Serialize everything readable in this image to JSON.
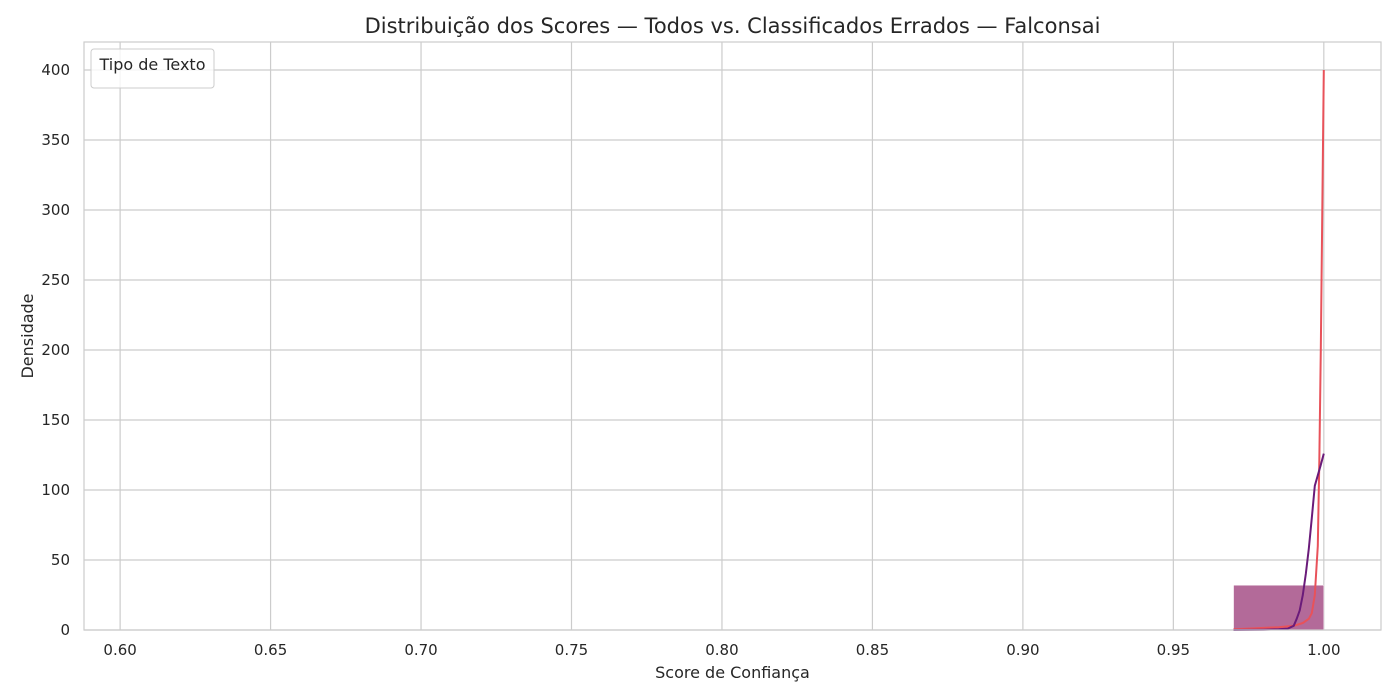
{
  "chart_data": {
    "type": "histogram",
    "title": "Distribuição dos Scores — Todos vs. Classificados Errados — Falconsai",
    "xlabel": "Score de Confiança",
    "ylabel": "Densidade",
    "xlim": [
      0.588,
      1.019
    ],
    "ylim": [
      0,
      420
    ],
    "grid": true,
    "x_ticks": [
      0.6,
      0.65,
      0.7,
      0.75,
      0.8,
      0.85,
      0.9,
      0.95,
      1.0
    ],
    "x_tick_labels": [
      "0.60",
      "0.65",
      "0.70",
      "0.75",
      "0.80",
      "0.85",
      "0.90",
      "0.95",
      "1.00"
    ],
    "y_ticks": [
      0,
      50,
      100,
      150,
      200,
      250,
      300,
      350,
      400
    ],
    "y_tick_labels": [
      "0",
      "50",
      "100",
      "150",
      "200",
      "250",
      "300",
      "350",
      "400"
    ],
    "legend": {
      "title": "Tipo de Texto",
      "placement": "top-left",
      "entries": []
    },
    "bars": [
      {
        "x0": 0.97,
        "x1": 1.0,
        "value": 32,
        "color": "#a0457f",
        "opacity": 0.8
      }
    ],
    "series": [
      {
        "color": "#e8525a",
        "points": [
          [
            0.97,
            0.5
          ],
          [
            0.975,
            1
          ],
          [
            0.98,
            1.5
          ],
          [
            0.985,
            2
          ],
          [
            0.99,
            3
          ],
          [
            0.993,
            5
          ],
          [
            0.995,
            8
          ],
          [
            0.996,
            12
          ],
          [
            0.997,
            25
          ],
          [
            0.998,
            60
          ],
          [
            0.9985,
            120
          ],
          [
            0.999,
            200
          ],
          [
            0.9995,
            300
          ],
          [
            1.0,
            400
          ]
        ]
      },
      {
        "color": "#6a1b7a",
        "points": [
          [
            0.97,
            0
          ],
          [
            0.98,
            0.2
          ],
          [
            0.985,
            0.5
          ],
          [
            0.988,
            1
          ],
          [
            0.99,
            3
          ],
          [
            0.991,
            8
          ],
          [
            0.992,
            14
          ],
          [
            0.993,
            25
          ],
          [
            0.994,
            40
          ],
          [
            0.995,
            58
          ],
          [
            0.996,
            80
          ],
          [
            0.997,
            103
          ],
          [
            0.999,
            118
          ],
          [
            1.0,
            126
          ]
        ]
      }
    ]
  }
}
